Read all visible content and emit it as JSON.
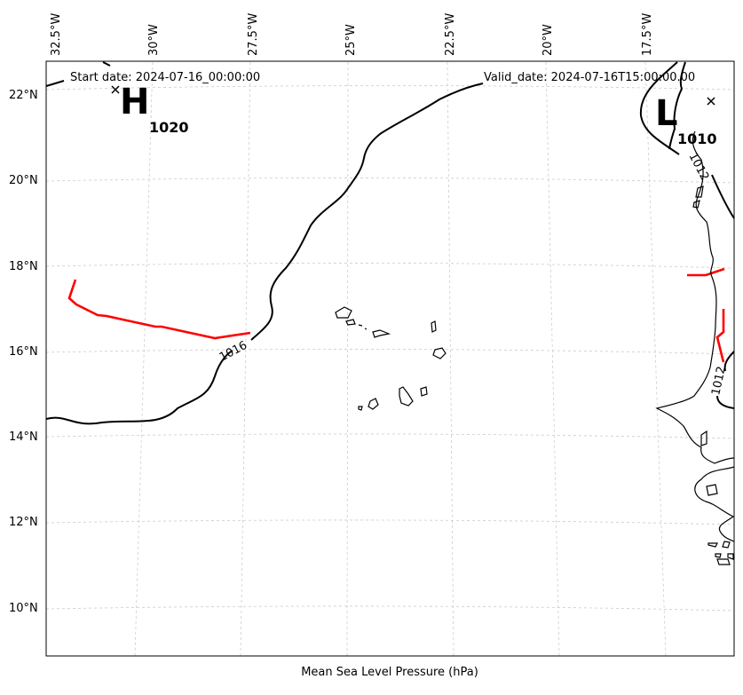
{
  "map": {
    "title": "Mean Sea Level Pressure (hPa)",
    "start_date": "Start date: 2024-07-16_00:00:00",
    "valid_date": "Valid_date: 2024-07-16T15:00:00.00",
    "lon_labels": [
      "32.5°W",
      "30°W",
      "27.5°W",
      "25°W",
      "22.5°W",
      "20°W",
      "17.5°W"
    ],
    "lat_labels": [
      "22°N",
      "20°N",
      "18°N",
      "16°N",
      "14°N",
      "12°N",
      "10°N"
    ],
    "centers": {
      "high": {
        "letter": "H",
        "value": "1020"
      },
      "low": {
        "letter": "L",
        "value": "1010"
      }
    },
    "contour_labels": {
      "west": "1016",
      "north_coast": "1012",
      "east_coast": "1012"
    },
    "colors": {
      "isobar": "#000000",
      "front": "#ff0000",
      "grid": "#cccccc",
      "coast": "#000000"
    }
  }
}
